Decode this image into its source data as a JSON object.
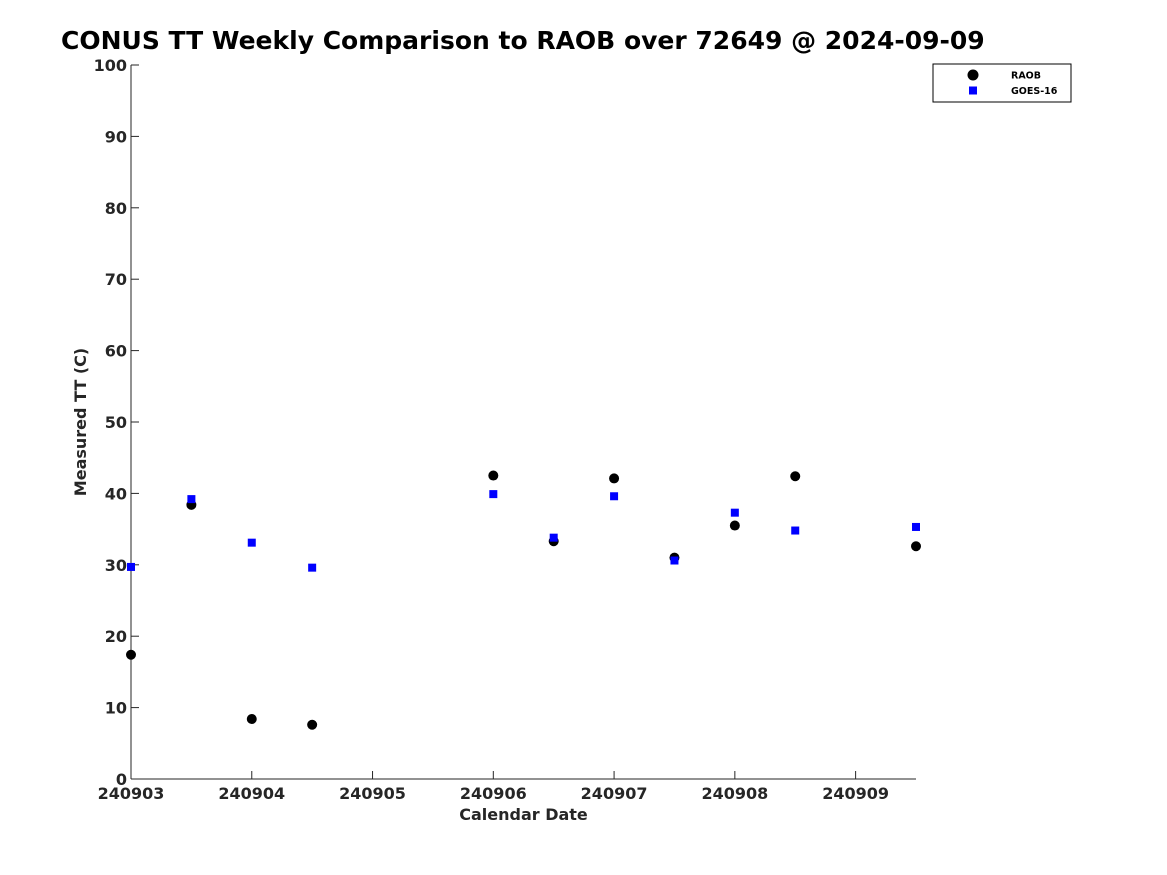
{
  "chart_data": {
    "type": "scatter",
    "title": "CONUS TT Weekly Comparison to RAOB over 72649 @ 2024-09-09",
    "xlabel": "Calendar Date",
    "ylabel": "Measured TT (C)",
    "xlim": [
      240903,
      240909.5
    ],
    "ylim": [
      0,
      100
    ],
    "x_ticks": [
      240903,
      240904,
      240905,
      240906,
      240907,
      240908,
      240909
    ],
    "x_tick_labels": [
      "240903",
      "240904",
      "240905",
      "240906",
      "240907",
      "240908",
      "240909"
    ],
    "y_ticks": [
      0,
      10,
      20,
      30,
      40,
      50,
      60,
      70,
      80,
      90,
      100
    ],
    "y_tick_labels": [
      "0",
      "10",
      "20",
      "30",
      "40",
      "50",
      "60",
      "70",
      "80",
      "90",
      "100"
    ],
    "grid": false,
    "legend_position": "top-right",
    "series": [
      {
        "name": "RAOB",
        "marker": "circle",
        "color": "#000000",
        "x": [
          240903,
          240903.5,
          240904,
          240904.5,
          240906,
          240906.5,
          240907,
          240907.5,
          240908,
          240908.5,
          240909.5
        ],
        "y": [
          17.4,
          38.4,
          8.4,
          7.6,
          42.5,
          33.3,
          42.1,
          31.0,
          35.5,
          42.4,
          32.6
        ]
      },
      {
        "name": "GOES-16",
        "marker": "square",
        "color": "#0000ff",
        "x": [
          240903,
          240903.5,
          240904,
          240904.5,
          240906,
          240906.5,
          240907,
          240907.5,
          240908,
          240908.5,
          240909.5
        ],
        "y": [
          29.7,
          39.2,
          33.1,
          29.6,
          39.9,
          33.8,
          39.6,
          30.6,
          37.3,
          34.8,
          35.3
        ]
      }
    ]
  }
}
